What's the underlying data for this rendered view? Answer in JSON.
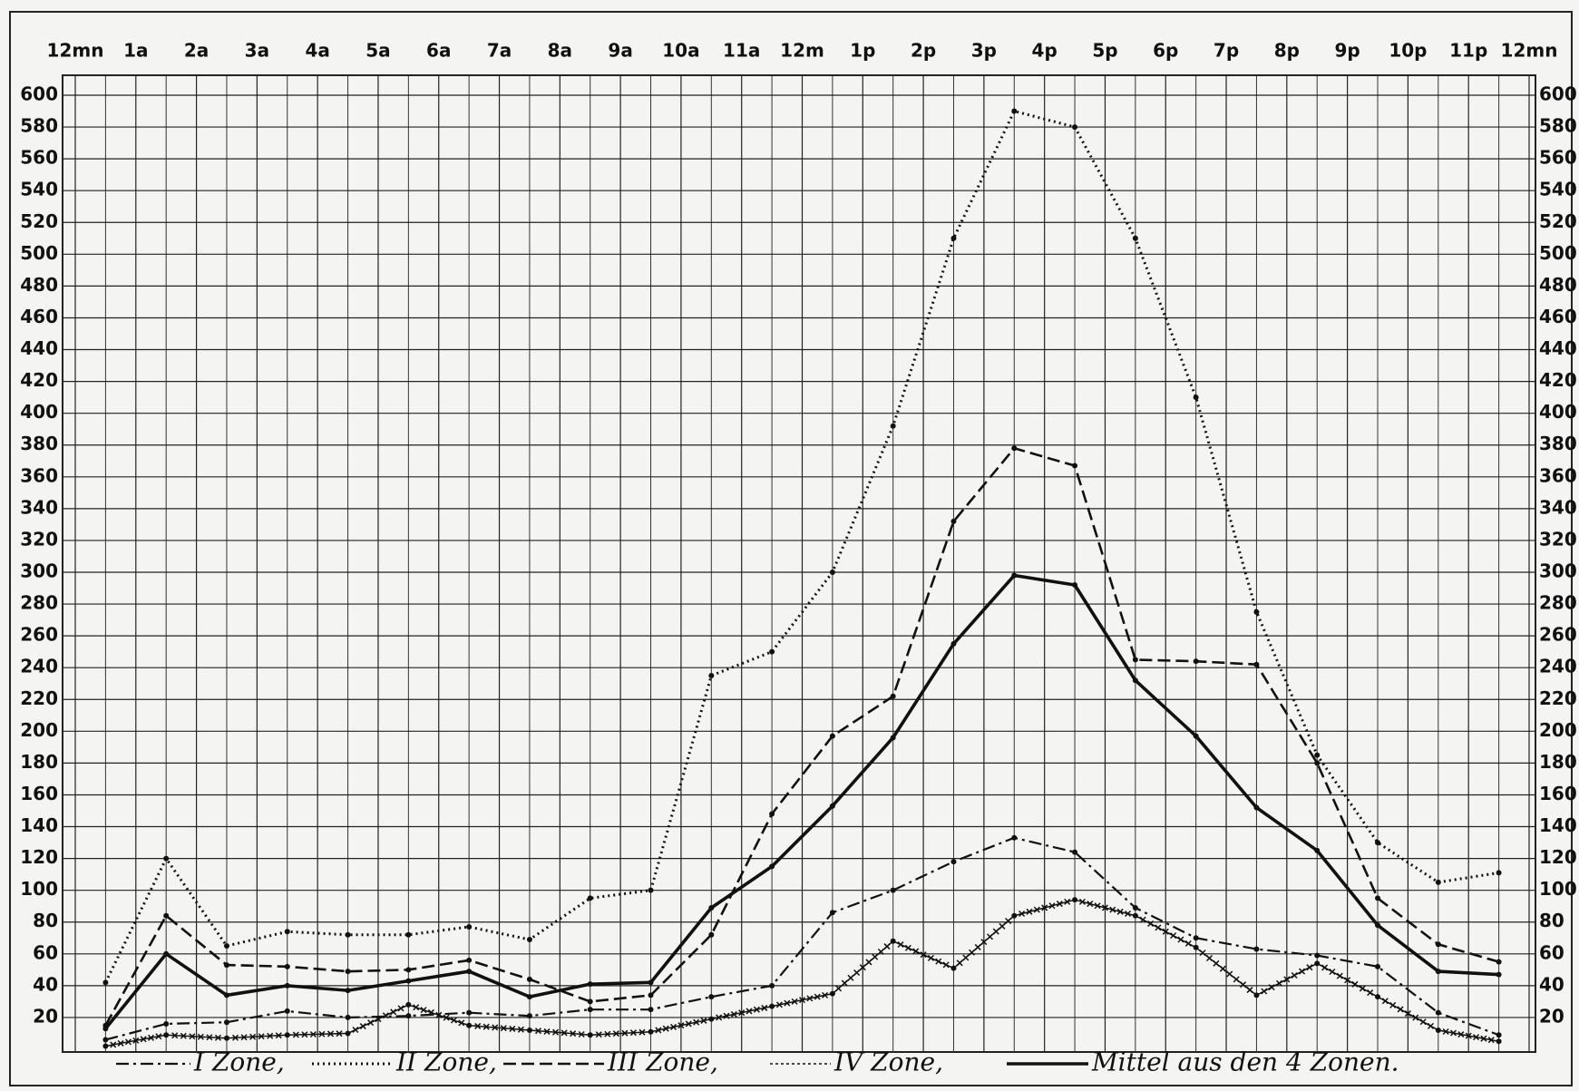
{
  "chart_data": {
    "type": "line",
    "x": [
      0.5,
      1.5,
      2.5,
      3.5,
      4.5,
      5.5,
      6.5,
      7.5,
      8.5,
      9.5,
      10.5,
      11.5,
      12.5,
      13.5,
      14.5,
      15.5,
      16.5,
      17.5,
      18.5,
      19.5,
      20.5,
      21.5,
      22.5,
      23.5
    ],
    "xlim": [
      0,
      24
    ],
    "xticks": [
      {
        "value": 0,
        "label": "12mn"
      },
      {
        "value": 1,
        "label": "1a"
      },
      {
        "value": 2,
        "label": "2a"
      },
      {
        "value": 3,
        "label": "3a"
      },
      {
        "value": 4,
        "label": "4a"
      },
      {
        "value": 5,
        "label": "5a"
      },
      {
        "value": 6,
        "label": "6a"
      },
      {
        "value": 7,
        "label": "7a"
      },
      {
        "value": 8,
        "label": "8a"
      },
      {
        "value": 9,
        "label": "9a"
      },
      {
        "value": 10,
        "label": "10a"
      },
      {
        "value": 11,
        "label": "11a"
      },
      {
        "value": 12,
        "label": "12m"
      },
      {
        "value": 13,
        "label": "1p"
      },
      {
        "value": 14,
        "label": "2p"
      },
      {
        "value": 15,
        "label": "3p"
      },
      {
        "value": 16,
        "label": "4p"
      },
      {
        "value": 17,
        "label": "5p"
      },
      {
        "value": 18,
        "label": "6p"
      },
      {
        "value": 19,
        "label": "7p"
      },
      {
        "value": 20,
        "label": "8p"
      },
      {
        "value": 21,
        "label": "9p"
      },
      {
        "value": 22,
        "label": "10p"
      },
      {
        "value": 23,
        "label": "11p"
      },
      {
        "value": 24,
        "label": "12mn"
      }
    ],
    "ylim": [
      0,
      600
    ],
    "yticks": [
      20,
      40,
      60,
      80,
      100,
      120,
      140,
      160,
      180,
      200,
      220,
      240,
      260,
      280,
      300,
      320,
      340,
      360,
      380,
      400,
      420,
      440,
      460,
      480,
      500,
      520,
      540,
      560,
      580,
      600
    ],
    "grid": true,
    "legend": "bottom",
    "series": [
      {
        "name": "I Zone,",
        "color": "#111",
        "style": "dashdot",
        "values": [
          6,
          16,
          17,
          24,
          20,
          21,
          23,
          21,
          25,
          25,
          33,
          40,
          86,
          100,
          118,
          133,
          124,
          89,
          70,
          63,
          59,
          52,
          23,
          9
        ]
      },
      {
        "name": "II Zone,",
        "color": "#111",
        "style": "dotted",
        "values": [
          42,
          120,
          65,
          74,
          72,
          72,
          77,
          69,
          95,
          100,
          235,
          250,
          300,
          392,
          510,
          590,
          580,
          510,
          410,
          275,
          185,
          130,
          105,
          111
        ]
      },
      {
        "name": "III Zone,",
        "color": "#111",
        "style": "dashed",
        "values": [
          15,
          84,
          53,
          52,
          49,
          50,
          56,
          44,
          30,
          34,
          72,
          148,
          197,
          222,
          332,
          378,
          367,
          245,
          244,
          242,
          180,
          95,
          66,
          55
        ]
      },
      {
        "name": "IV Zone,",
        "color": "#111",
        "style": "cross",
        "values": [
          2,
          9,
          7,
          9,
          10,
          28,
          15,
          12,
          9,
          11,
          19,
          27,
          35,
          68,
          51,
          84,
          94,
          84,
          64,
          34,
          54,
          33,
          12,
          5
        ]
      },
      {
        "name": "Mittel aus den 4 Zonen.",
        "color": "#111",
        "style": "solid",
        "values": [
          13,
          60,
          34,
          40,
          37,
          43,
          49,
          33,
          41,
          42,
          89,
          115,
          153,
          196,
          255,
          298,
          292,
          232,
          197,
          152,
          125,
          78,
          49,
          47
        ]
      }
    ]
  }
}
